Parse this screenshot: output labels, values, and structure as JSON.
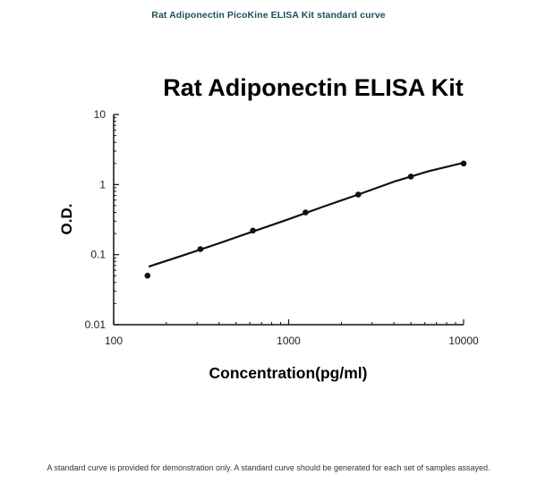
{
  "heading": "Rat Adiponectin PicoKine ELISA Kit standard curve",
  "footer": "A standard curve is provided for demonstration only. A standard curve should be generated for each set of samples assayed.",
  "colors": {
    "heading": "#1f4e5a",
    "ink": "#111111",
    "background": "#ffffff"
  },
  "chart_data": {
    "type": "scatter",
    "title": "Rat Adiponectin ELISA Kit",
    "xlabel": "Concentration(pg/ml)",
    "ylabel": "O.D.",
    "x_scale": "log",
    "y_scale": "log",
    "xlim": [
      100,
      10000
    ],
    "ylim": [
      0.01,
      10
    ],
    "x_ticks": [
      {
        "value": 100,
        "label": "100"
      },
      {
        "value": 1000,
        "label": "1000"
      },
      {
        "value": 10000,
        "label": "10000"
      }
    ],
    "y_ticks": [
      {
        "value": 10,
        "label": "10"
      },
      {
        "value": 1,
        "label": "1"
      },
      {
        "value": 0.1,
        "label": "0.1"
      },
      {
        "value": 0.01,
        "label": "0.01"
      }
    ],
    "grid": false,
    "legend": "none",
    "series": [
      {
        "kind": "points",
        "x": [
          156,
          313,
          625,
          1250,
          2500,
          5000,
          10000
        ],
        "y": [
          0.05,
          0.12,
          0.22,
          0.4,
          0.72,
          1.3,
          2.0
        ]
      },
      {
        "kind": "fit-curve",
        "x": [
          160,
          250,
          400,
          630,
          1000,
          1600,
          2500,
          4000,
          6300,
          10000
        ],
        "y": [
          0.068,
          0.098,
          0.145,
          0.215,
          0.32,
          0.49,
          0.72,
          1.1,
          1.55,
          2.05
        ]
      }
    ]
  }
}
